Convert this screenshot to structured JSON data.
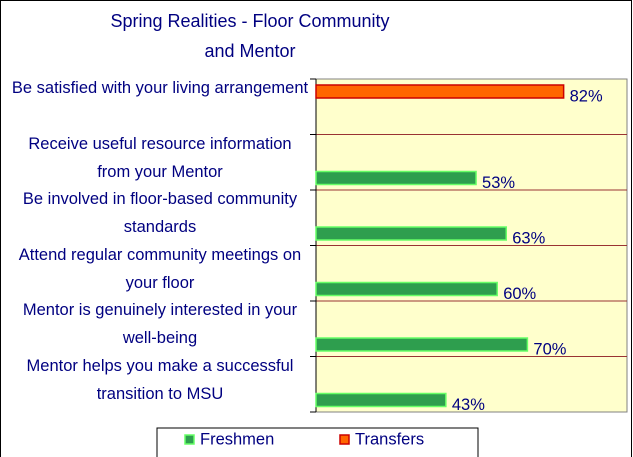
{
  "chart_data": {
    "type": "hbar",
    "title": "Spring Realities - Floor Community and Mentor",
    "categories": [
      "Be satisfied with your living arrangement",
      "Receive useful resource information from your  Mentor",
      "Be involved in floor-based community standards",
      "Attend regular community meetings on your floor",
      "Mentor is genuinely interested in your well-being",
      "Mentor helps you make a successful transition to MSU"
    ],
    "series": [
      {
        "name": "Freshmen",
        "color": "#2e9e4e",
        "values": [
          null,
          53,
          63,
          60,
          70,
          43
        ],
        "value_labels": [
          null,
          "53%",
          "63%",
          "60%",
          "70%",
          "43%"
        ]
      },
      {
        "name": "Transfers",
        "color": "#ff6600",
        "values": [
          82,
          null,
          null,
          null,
          null,
          null
        ],
        "value_labels": [
          "82%",
          null,
          null,
          null,
          null,
          null
        ]
      }
    ],
    "xlim": [
      0,
      100
    ]
  }
}
